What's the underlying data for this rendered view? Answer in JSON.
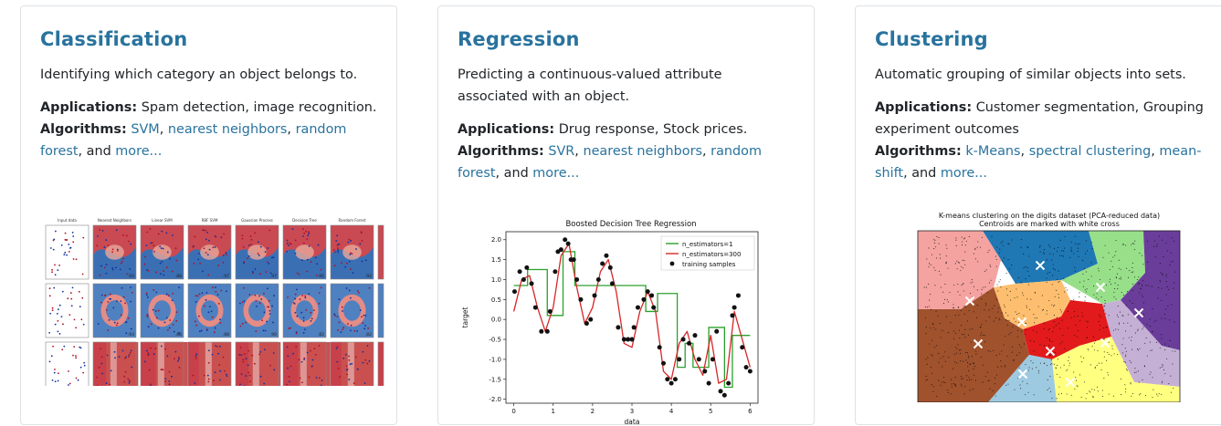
{
  "cards": [
    {
      "title": "Classification",
      "description": "Identifying which category an object belongs to.",
      "applications_label": "Applications:",
      "applications": "Spam detection, image recognition.",
      "algorithms_label": "Algorithms:",
      "links": [
        "SVM",
        "nearest neighbors",
        "random forest"
      ],
      "and_text": "and",
      "more": "more...",
      "figure": {
        "column_titles": [
          "Input data",
          "Nearest Neighbors",
          "Linear SVM",
          "RBF SVM",
          "Gaussian Process",
          "Decision Tree",
          "Random Forest",
          "N"
        ],
        "scores": [
          [
            "",
            ".93",
            ".88",
            ".97",
            ".97",
            ".95",
            ".92",
            ""
          ],
          [
            "",
            ".93",
            ".88",
            ".88",
            ".90",
            ".82",
            ".82",
            ""
          ],
          [
            "",
            ".95",
            ".95",
            ".95",
            ".97",
            ".95",
            ".90",
            ""
          ]
        ]
      }
    },
    {
      "title": "Regression",
      "description": "Predicting a continuous-valued attribute associated with an object.",
      "applications_label": "Applications:",
      "applications": "Drug response, Stock prices.",
      "algorithms_label": "Algorithms:",
      "links": [
        "SVR",
        "nearest neighbors",
        "random forest"
      ],
      "and_text": "and",
      "more": "more...",
      "chart_data": {
        "type": "line",
        "title": "Boosted Decision Tree Regression",
        "xlabel": "data",
        "ylabel": "target",
        "xlim": [
          -0.2,
          6.2
        ],
        "ylim": [
          -2.1,
          2.2
        ],
        "xticks": [
          0,
          1,
          2,
          3,
          4,
          5,
          6
        ],
        "yticks": [
          -2.0,
          -1.5,
          -1.0,
          -0.5,
          0.0,
          0.5,
          1.0,
          1.5,
          2.0
        ],
        "legend": [
          "n_estimators=1",
          "n_estimators=300",
          "training samples"
        ],
        "legend_position": "top-right",
        "series": [
          {
            "name": "n_estimators=1",
            "color": "#2ca02c",
            "step_x": [
              0,
              0.35,
              0.85,
              1.25,
              1.55,
              3.35,
              3.65,
              4.15,
              4.35,
              4.55,
              4.95,
              5.35,
              5.55,
              6.0
            ],
            "step_y": [
              0.85,
              1.25,
              0.1,
              1.7,
              0.85,
              0.2,
              0.65,
              -1.2,
              -0.6,
              -1.2,
              -0.2,
              -1.7,
              -0.4,
              -1.1
            ]
          },
          {
            "name": "n_estimators=300",
            "color": "#d62728",
            "x": [
              0,
              0.2,
              0.4,
              0.6,
              0.8,
              1.0,
              1.2,
              1.4,
              1.6,
              1.8,
              2.0,
              2.2,
              2.4,
              2.6,
              2.8,
              3.0,
              3.2,
              3.4,
              3.6,
              3.8,
              4.0,
              4.2,
              4.4,
              4.6,
              4.8,
              5.0,
              5.2,
              5.4,
              5.6,
              5.8,
              6.0
            ],
            "y": [
              0.2,
              1.0,
              1.1,
              0.3,
              -0.3,
              0.3,
              1.6,
              1.9,
              0.8,
              -0.1,
              0.3,
              1.2,
              1.5,
              0.7,
              -0.6,
              -0.7,
              0.2,
              0.7,
              0.2,
              -1.3,
              -1.5,
              -0.6,
              -0.3,
              -1.0,
              -1.4,
              -0.4,
              -1.6,
              -1.5,
              0.2,
              -0.5,
              -1.2
            ]
          }
        ],
        "samples": {
          "name": "training samples",
          "x": [
            0.02,
            0.15,
            0.25,
            0.33,
            0.45,
            0.55,
            0.7,
            0.85,
            0.92,
            1.05,
            1.12,
            1.2,
            1.3,
            1.38,
            1.45,
            1.52,
            1.6,
            1.7,
            1.85,
            1.95,
            2.05,
            2.15,
            2.25,
            2.35,
            2.45,
            2.5,
            2.65,
            2.8,
            2.9,
            3.0,
            3.05,
            3.15,
            3.3,
            3.4,
            3.5,
            3.55,
            3.7,
            3.8,
            3.9,
            4.0,
            4.1,
            4.2,
            4.3,
            4.45,
            4.6,
            4.7,
            4.85,
            4.95,
            5.05,
            5.15,
            5.25,
            5.35,
            5.45,
            5.55,
            5.6,
            5.7,
            5.8,
            5.9,
            6.0
          ],
          "y": [
            0.7,
            1.2,
            1.0,
            1.3,
            0.9,
            0.3,
            -0.3,
            -0.3,
            0.2,
            1.2,
            1.7,
            1.75,
            2.0,
            1.9,
            1.5,
            1.5,
            1.0,
            0.5,
            -0.1,
            0.0,
            0.6,
            1.0,
            1.4,
            1.6,
            1.3,
            0.9,
            -0.2,
            -0.5,
            -0.5,
            -0.5,
            -0.2,
            0.3,
            0.5,
            0.7,
            0.6,
            0.3,
            -0.7,
            -1.1,
            -1.5,
            -1.6,
            -1.5,
            -1.0,
            -0.5,
            -0.6,
            -0.4,
            -1.0,
            -1.3,
            -1.6,
            -1.0,
            -0.3,
            -1.8,
            -1.9,
            -1.6,
            0.1,
            0.3,
            0.6,
            -0.7,
            -1.2,
            -1.3
          ]
        }
      }
    },
    {
      "title": "Clustering",
      "description": "Automatic grouping of similar objects into sets.",
      "applications_label": "Applications:",
      "applications": "Customer segmentation, Grouping experiment outcomes",
      "algorithms_label": "Algorithms:",
      "links": [
        "k-Means",
        "spectral clustering",
        "mean-shift"
      ],
      "and_text": "and",
      "more": "more...",
      "figure": {
        "title_line1": "K-means clustering on the digits dataset (PCA-reduced data)",
        "title_line2": "Centroids are marked with white cross"
      }
    }
  ]
}
